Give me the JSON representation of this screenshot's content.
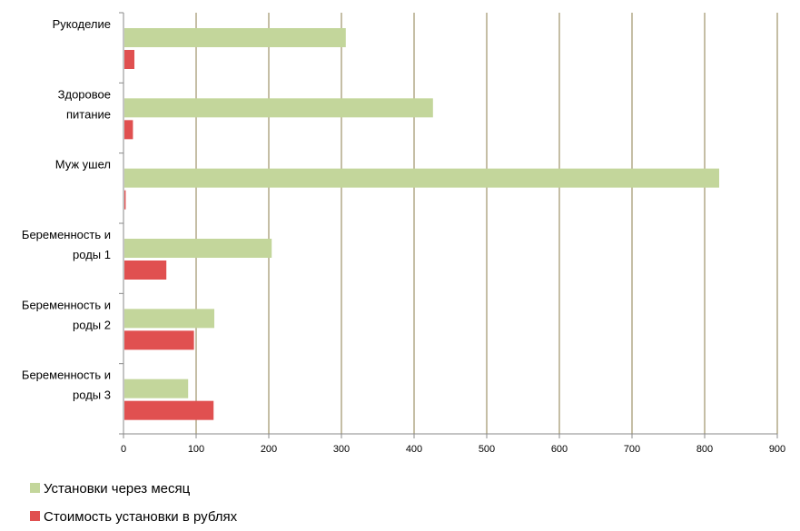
{
  "chart_data": {
    "type": "bar",
    "orientation": "horizontal",
    "categories": [
      [
        "Рукоделие"
      ],
      [
        "Здоровое",
        "питание"
      ],
      [
        "Муж ушел"
      ],
      [
        "Беременность и",
        "роды 1"
      ],
      [
        "Беременность и",
        "роды 2"
      ],
      [
        "Беременность и",
        "роды 3"
      ]
    ],
    "series": [
      {
        "name": "Установки через месяц",
        "color": "#c3d69b",
        "values": [
          306,
          426,
          820,
          204,
          125,
          89
        ]
      },
      {
        "name": "Стоимость установки в рублях",
        "color": "#e05050",
        "values": [
          15,
          13,
          3,
          59,
          97,
          124
        ]
      }
    ],
    "xlim": [
      0,
      900
    ],
    "xticks": [
      0,
      100,
      200,
      300,
      400,
      500,
      600,
      700,
      800,
      900
    ],
    "grid": true,
    "grid_color": "#8b7d4b",
    "legend_position": "bottom-left"
  }
}
